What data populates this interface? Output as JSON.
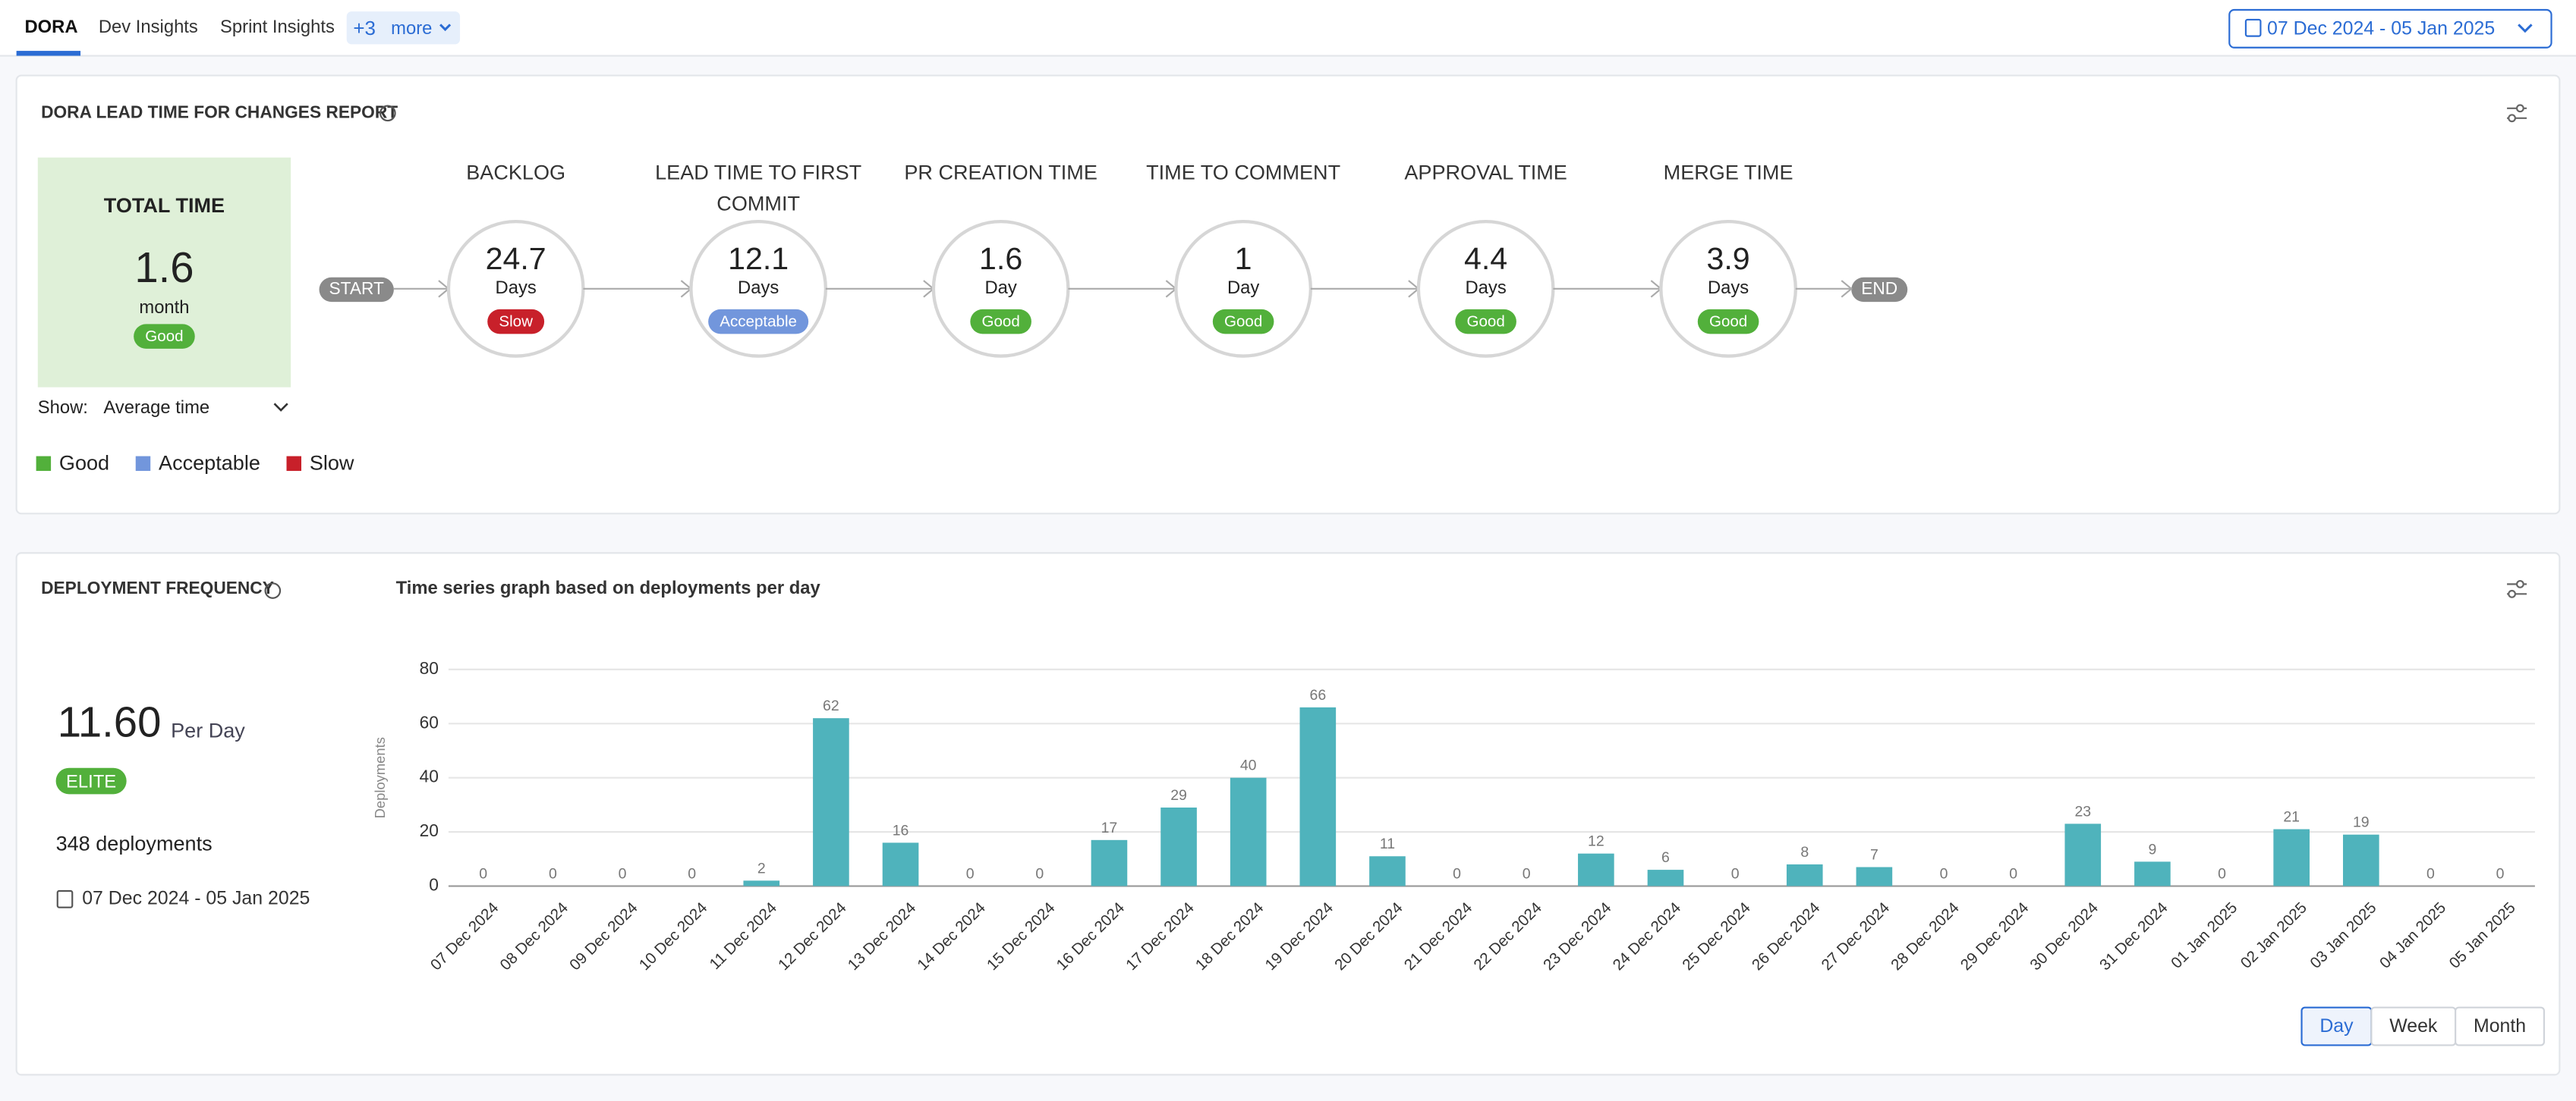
{
  "tabs": [
    "DORA",
    "Dev Insights",
    "Sprint Insights"
  ],
  "more_count": "+3",
  "more_label": "more",
  "date_range": "07 Dec 2024 - 05 Jan 2025",
  "lead_time": {
    "title": "DORA LEAD TIME FOR CHANGES REPORT",
    "total": {
      "label": "TOTAL TIME",
      "value": 1.6,
      "unit": "month",
      "status": "Good"
    },
    "show_label": "Show:",
    "show_value": "Average time",
    "start": "START",
    "end": "END",
    "stages": [
      {
        "name": "BACKLOG",
        "value": 24.7,
        "unit": "Days",
        "status": "Slow"
      },
      {
        "name": "LEAD TIME TO FIRST COMMIT",
        "value": 12.1,
        "unit": "Days",
        "status": "Acceptable"
      },
      {
        "name": "PR CREATION TIME",
        "value": 1.6,
        "unit": "Day",
        "status": "Good"
      },
      {
        "name": "TIME TO COMMENT",
        "value": 1,
        "unit": "Day",
        "status": "Good"
      },
      {
        "name": "APPROVAL TIME",
        "value": 4.4,
        "unit": "Days",
        "status": "Good"
      },
      {
        "name": "MERGE TIME",
        "value": 3.9,
        "unit": "Days",
        "status": "Good"
      }
    ],
    "legend": [
      {
        "name": "Good",
        "color": "#52b03b"
      },
      {
        "name": "Acceptable",
        "color": "#7296dc"
      },
      {
        "name": "Slow",
        "color": "#c8202a"
      }
    ]
  },
  "deployment": {
    "title": "DEPLOYMENT FREQUENCY",
    "value": "11.60",
    "unit": "Per Day",
    "level": "ELITE",
    "total": "348 deployments",
    "date_range": "07 Dec 2024 - 05 Jan 2025",
    "granularity": [
      "Day",
      "Week",
      "Month"
    ]
  },
  "chart_data": {
    "type": "bar",
    "title": "Time series graph based on deployments per day",
    "y_label": "Deployments",
    "categories": [
      "07 Dec 2024",
      "08 Dec 2024",
      "09 Dec 2024",
      "10 Dec 2024",
      "11 Dec 2024",
      "12 Dec 2024",
      "13 Dec 2024",
      "14 Dec 2024",
      "15 Dec 2024",
      "16 Dec 2024",
      "17 Dec 2024",
      "18 Dec 2024",
      "19 Dec 2024",
      "20 Dec 2024",
      "21 Dec 2024",
      "22 Dec 2024",
      "23 Dec 2024",
      "24 Dec 2024",
      "25 Dec 2024",
      "26 Dec 2024",
      "27 Dec 2024",
      "28 Dec 2024",
      "29 Dec 2024",
      "30 Dec 2024",
      "31 Dec 2024",
      "01 Jan 2025",
      "02 Jan 2025",
      "03 Jan 2025",
      "04 Jan 2025",
      "05 Jan 2025"
    ],
    "values": [
      0,
      0,
      0,
      0,
      2,
      62,
      16,
      0,
      0,
      17,
      29,
      40,
      66,
      11,
      0,
      0,
      12,
      6,
      0,
      8,
      7,
      0,
      0,
      23,
      9,
      0,
      21,
      19,
      0,
      0
    ],
    "color": "#4fb3bc",
    "ylim": [
      0,
      80
    ],
    "yticks": [
      0,
      20,
      40,
      60,
      80
    ],
    "grid": true
  }
}
